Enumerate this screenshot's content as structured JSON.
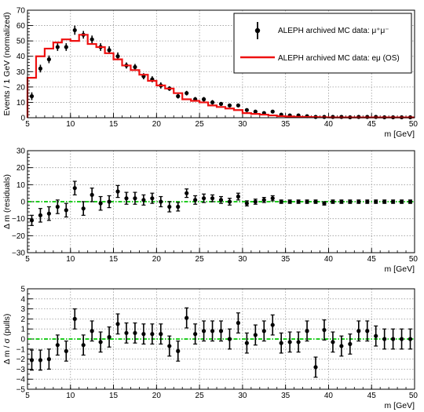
{
  "colors": {
    "data": "#000000",
    "mc": "#ee1111",
    "ref": "#22cc22",
    "grid": "#9a9a9a",
    "frame": "#000000"
  },
  "chart_data": [
    {
      "type": "scatter",
      "ylabel": "Events / 1 GeV (normalized)",
      "xlabel": "m [GeV]",
      "xlim": [
        5,
        50
      ],
      "ylim": [
        0,
        70
      ],
      "xticks": [
        "5",
        "10",
        "15",
        "20",
        "25",
        "30",
        "35",
        "40",
        "45",
        "50"
      ],
      "yticks": [
        "0",
        "10",
        "20",
        "30",
        "40",
        "50",
        "60",
        "70"
      ],
      "grid": true,
      "legend_position": "top-right",
      "legend": [
        {
          "label": "ALEPH archived MC data: μ⁺μ⁻",
          "style": "points"
        },
        {
          "label": "ALEPH archived MC data: eμ (OS)",
          "style": "line"
        }
      ],
      "series": [
        {
          "name": "ALEPH archived MC data: μ⁺μ⁻",
          "type": "points",
          "x": [
            5.5,
            6.5,
            7.5,
            8.5,
            9.5,
            10.5,
            11.5,
            12.5,
            13.5,
            14.5,
            15.5,
            16.5,
            17.5,
            18.5,
            19.5,
            20.5,
            21.5,
            22.5,
            23.5,
            24.5,
            25.5,
            26.5,
            27.5,
            28.5,
            29.5,
            30.5,
            31.5,
            32.5,
            33.5,
            34.5,
            35.5,
            36.5,
            37.5,
            38.5,
            39.5,
            40.5,
            41.5,
            42.5,
            43.5,
            44.5,
            45.5,
            46.5,
            47.5,
            48.5,
            49.5
          ],
          "y": [
            14,
            32,
            38,
            46,
            46,
            57,
            54,
            51,
            46,
            44,
            40,
            34,
            33,
            27,
            25,
            21,
            19,
            14,
            16,
            12,
            12,
            10,
            9,
            8,
            8,
            5,
            4,
            3,
            4,
            2,
            1.5,
            1.5,
            1,
            0.5,
            0.5,
            0.5,
            0.5,
            0.3,
            0.5,
            0.5,
            0.5,
            0.3,
            0.3,
            0.3,
            0.3
          ],
          "yerr": [
            2.5,
            2.5,
            2.5,
            2.5,
            2.5,
            3,
            2.5,
            2.5,
            2.5,
            2.5,
            2.5,
            2,
            2,
            2,
            2,
            2,
            1.5,
            1.5,
            1.5,
            1.5,
            1.5,
            1.5,
            1,
            1,
            1,
            1,
            1,
            1,
            1,
            1,
            1,
            1,
            1,
            1,
            1,
            1,
            1,
            1,
            1,
            1,
            1,
            1,
            1,
            1,
            1
          ]
        },
        {
          "name": "ALEPH archived MC data: eμ (OS)",
          "type": "step",
          "x": [
            5.5,
            6.5,
            7.5,
            8.5,
            9.5,
            10.5,
            11.5,
            12.5,
            13.5,
            14.5,
            15.5,
            16.5,
            17.5,
            18.5,
            19.5,
            20.5,
            21.5,
            22.5,
            23.5,
            24.5,
            25.5,
            26.5,
            27.5,
            28.5,
            29.5,
            30.5,
            31.5,
            32.5,
            33.5,
            34.5,
            35.5,
            36.5,
            37.5,
            38.5,
            39.5,
            40.5,
            41.5,
            42.5,
            43.5,
            44.5,
            45.5,
            46.5,
            47.5,
            48.5,
            49.5
          ],
          "y": [
            26,
            40,
            45,
            49,
            51,
            50,
            54,
            48,
            46,
            42,
            38,
            34,
            31,
            28,
            24,
            21,
            19,
            16,
            12,
            11,
            10,
            8,
            7,
            6,
            5,
            3,
            2.5,
            2,
            1.5,
            1,
            0.8,
            0.6,
            0.5,
            0.4,
            0.3,
            0.2,
            0.2,
            0.2,
            0.2,
            0.2,
            0.2,
            0.2,
            0.2,
            0.2,
            0.2
          ]
        }
      ]
    },
    {
      "type": "scatter",
      "ylabel": "Δ m (residuals)",
      "xlabel": "m [GeV]",
      "xlim": [
        5,
        50
      ],
      "ylim": [
        -30,
        30
      ],
      "xticks": [
        "5",
        "10",
        "15",
        "20",
        "25",
        "30",
        "35",
        "40",
        "45",
        "50"
      ],
      "yticks": [
        "−30",
        "−20",
        "−10",
        "0",
        "10",
        "20",
        "30"
      ],
      "grid": true,
      "reference_line": 0,
      "series": [
        {
          "type": "points",
          "x": [
            5.5,
            6.5,
            7.5,
            8.5,
            9.5,
            10.5,
            11.5,
            12.5,
            13.5,
            14.5,
            15.5,
            16.5,
            17.5,
            18.5,
            19.5,
            20.5,
            21.5,
            22.5,
            23.5,
            24.5,
            25.5,
            26.5,
            27.5,
            28.5,
            29.5,
            30.5,
            31.5,
            32.5,
            33.5,
            34.5,
            35.5,
            36.5,
            37.5,
            38.5,
            39.5,
            40.5,
            41.5,
            42.5,
            43.5,
            44.5,
            45.5,
            46.5,
            47.5,
            48.5,
            49.5
          ],
          "y": [
            -11,
            -8,
            -7,
            -3,
            -5,
            8,
            -4,
            4,
            -1,
            0,
            6,
            2,
            2,
            1,
            2,
            0,
            -3,
            -3,
            5,
            1,
            2,
            2,
            1,
            0,
            3,
            -1,
            0,
            1,
            2,
            0,
            0,
            0,
            0,
            0,
            -1,
            0,
            0,
            0,
            0,
            0,
            0,
            0,
            0,
            0,
            0
          ],
          "yerr": [
            3,
            4,
            4,
            4,
            4,
            4,
            4,
            4,
            4,
            3.5,
            3.5,
            3.5,
            3.5,
            3,
            3,
            3,
            3,
            2.5,
            2.5,
            2.5,
            2.5,
            2,
            2,
            2,
            2,
            1.5,
            1.5,
            1.5,
            1.5,
            1,
            1,
            1,
            1,
            1,
            1,
            1,
            1,
            1,
            1,
            1,
            1,
            1,
            1,
            1,
            1
          ]
        }
      ]
    },
    {
      "type": "scatter",
      "ylabel": "Δ m / σ (pulls)",
      "xlabel": "m [GeV]",
      "xlim": [
        5,
        50
      ],
      "ylim": [
        -5,
        5
      ],
      "xticks": [
        "5",
        "10",
        "15",
        "20",
        "25",
        "30",
        "35",
        "40",
        "45",
        "50"
      ],
      "yticks": [
        "−5",
        "−4",
        "−3",
        "−2",
        "−1",
        "0",
        "1",
        "2",
        "3",
        "4",
        "5"
      ],
      "grid": true,
      "reference_line": 0,
      "series": [
        {
          "type": "points",
          "x": [
            5.5,
            6.5,
            7.5,
            8.5,
            9.5,
            10.5,
            11.5,
            12.5,
            13.5,
            14.5,
            15.5,
            16.5,
            17.5,
            18.5,
            19.5,
            20.5,
            21.5,
            22.5,
            23.5,
            24.5,
            25.5,
            26.5,
            27.5,
            28.5,
            29.5,
            30.5,
            31.5,
            32.5,
            33.5,
            34.5,
            35.5,
            36.5,
            37.5,
            38.5,
            39.5,
            40.5,
            41.5,
            42.5,
            43.5,
            44.5,
            45.5,
            46.5,
            47.5,
            48.5,
            49.5
          ],
          "y": [
            -2.1,
            -2.1,
            -2,
            -0.6,
            -1.2,
            2,
            -0.6,
            0.8,
            -0.3,
            0.2,
            1.5,
            0.6,
            0.6,
            0.5,
            0.5,
            0.5,
            -0.7,
            -1.2,
            2.1,
            0.5,
            0.8,
            0.8,
            0.8,
            0,
            1.6,
            -0.4,
            0.4,
            0.8,
            1.4,
            -0.4,
            -0.3,
            -0.3,
            0.8,
            -2.8,
            0.9,
            -0.3,
            -0.7,
            -0.5,
            0.8,
            0.8,
            0.3,
            0,
            0,
            0,
            0
          ],
          "yerr": [
            1,
            1,
            1,
            1,
            1,
            1,
            1,
            1,
            1,
            1,
            1,
            1,
            1,
            1,
            1,
            1,
            1,
            1,
            1,
            1,
            1,
            1,
            1,
            1,
            1,
            1,
            1,
            1,
            1,
            1,
            1,
            1,
            1,
            1,
            1,
            1,
            1,
            1,
            1,
            1,
            1,
            1,
            1,
            1,
            1
          ]
        }
      ]
    }
  ]
}
